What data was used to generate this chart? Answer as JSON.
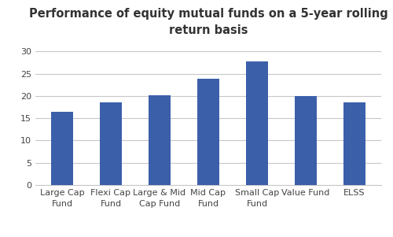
{
  "title": "Performance of equity mutual funds on a 5-year rolling\nreturn basis",
  "categories": [
    "Large Cap\nFund",
    "Flexi Cap\nFund",
    "Large & Mid\nCap Fund",
    "Mid Cap\nFund",
    "Small Cap\nFund",
    "Value Fund",
    "ELSS"
  ],
  "values": [
    16.5,
    18.5,
    20.2,
    23.8,
    27.7,
    20.0,
    18.5
  ],
  "bar_color": "#3C5FAA",
  "background_color": "#FFFFFF",
  "ylim": [
    0,
    32
  ],
  "yticks": [
    0,
    5,
    10,
    15,
    20,
    25,
    30
  ],
  "grid_color": "#C8C8C8",
  "title_fontsize": 10.5,
  "tick_fontsize": 8,
  "bar_width": 0.45,
  "title_color": "#333333"
}
